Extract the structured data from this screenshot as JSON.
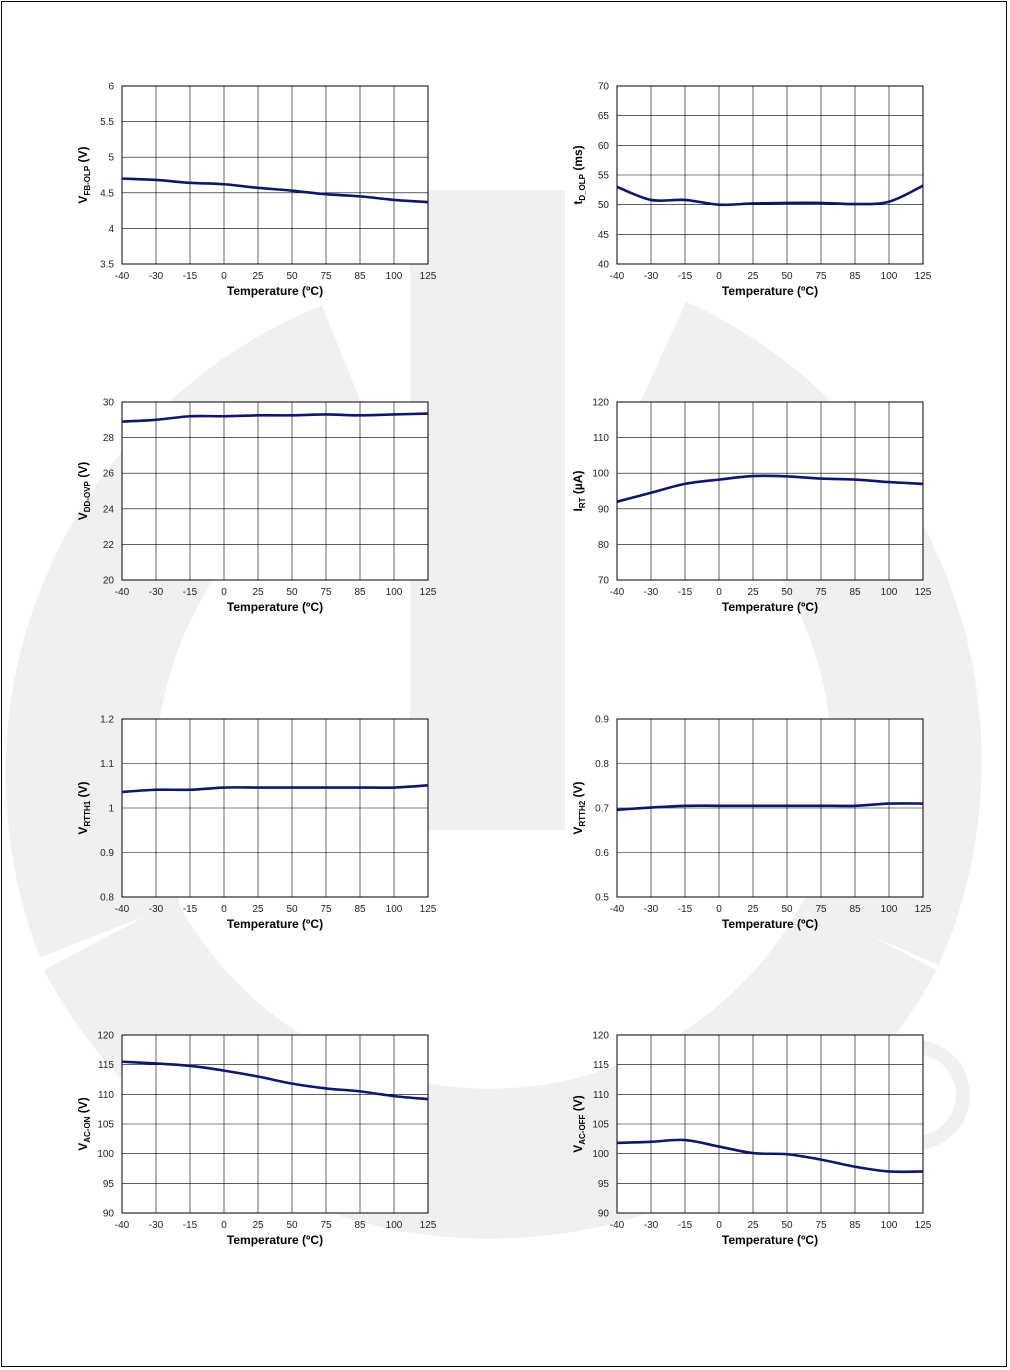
{
  "colors": {
    "line": "#0d1673",
    "grid": "#000000",
    "watermark": "#f0f0f0"
  },
  "chart_data": [
    {
      "type": "line",
      "x": [
        "-40",
        "-30",
        "-15",
        "0",
        "25",
        "50",
        "75",
        "85",
        "100",
        "125"
      ],
      "xlabel": "Temperature (ºC)",
      "ylabel": {
        "main": "V",
        "sub": "FB-OLP",
        "unit": " (V)"
      },
      "yticks": [
        "3.5",
        "4",
        "4.5",
        "5",
        "5.5",
        "6"
      ],
      "ylim": [
        3.5,
        6
      ],
      "series": [
        {
          "values": [
            4.7,
            4.68,
            4.64,
            4.62,
            4.57,
            4.53,
            4.48,
            4.45,
            4.4,
            4.37
          ]
        }
      ]
    },
    {
      "type": "line",
      "x": [
        "-40",
        "-30",
        "-15",
        "0",
        "25",
        "50",
        "75",
        "85",
        "100",
        "125"
      ],
      "xlabel": "Temperature (ºC)",
      "ylabel": {
        "main": "t",
        "sub": "D_OLP",
        "unit": " (ms)"
      },
      "yticks": [
        "40",
        "45",
        "50",
        "55",
        "60",
        "65",
        "70"
      ],
      "ylim": [
        40,
        70
      ],
      "series": [
        {
          "values": [
            53.0,
            50.8,
            50.8,
            50.0,
            50.2,
            50.3,
            50.3,
            50.1,
            50.5,
            53.2
          ]
        }
      ]
    },
    {
      "type": "line",
      "x": [
        "-40",
        "-30",
        "-15",
        "0",
        "25",
        "50",
        "75",
        "85",
        "100",
        "125"
      ],
      "xlabel": "Temperature (ºC)",
      "ylabel": {
        "main": "V",
        "sub": "DD-OVP",
        "unit": " (V)"
      },
      "yticks": [
        "20",
        "22",
        "24",
        "26",
        "28",
        "30"
      ],
      "ylim": [
        20,
        30
      ],
      "series": [
        {
          "values": [
            28.9,
            29.0,
            29.2,
            29.2,
            29.25,
            29.25,
            29.3,
            29.25,
            29.3,
            29.35
          ]
        }
      ]
    },
    {
      "type": "line",
      "x": [
        "-40",
        "-30",
        "-15",
        "0",
        "25",
        "50",
        "75",
        "85",
        "100",
        "125"
      ],
      "xlabel": "Temperature (ºC)",
      "ylabel": {
        "main": "I",
        "sub": "RT",
        "unit": " (µA)"
      },
      "yticks": [
        "70",
        "80",
        "90",
        "100",
        "110",
        "120"
      ],
      "ylim": [
        70,
        120
      ],
      "series": [
        {
          "values": [
            92.0,
            94.5,
            97.0,
            98.2,
            99.2,
            99.1,
            98.5,
            98.2,
            97.5,
            97.0
          ]
        }
      ]
    },
    {
      "type": "line",
      "x": [
        "-40",
        "-30",
        "-15",
        "0",
        "25",
        "50",
        "75",
        "85",
        "100",
        "125"
      ],
      "xlabel": "Temperature (ºC)",
      "ylabel": {
        "main": "V",
        "sub": "RTTH1",
        "unit": " (V)"
      },
      "yticks": [
        "0.8",
        "0.9",
        "1",
        "1.1",
        "1.2"
      ],
      "ylim": [
        0.8,
        1.2
      ],
      "series": [
        {
          "values": [
            1.036,
            1.041,
            1.041,
            1.046,
            1.046,
            1.046,
            1.046,
            1.046,
            1.046,
            1.051
          ]
        }
      ]
    },
    {
      "type": "line",
      "x": [
        "-40",
        "-30",
        "-15",
        "0",
        "25",
        "50",
        "75",
        "85",
        "100",
        "125"
      ],
      "xlabel": "Temperature (ºC)",
      "ylabel": {
        "main": "V",
        "sub": "RTTH2",
        "unit": " (V)"
      },
      "yticks": [
        "0.5",
        "0.6",
        "0.7",
        "0.8",
        "0.9"
      ],
      "ylim": [
        0.5,
        0.9
      ],
      "series": [
        {
          "values": [
            0.696,
            0.701,
            0.705,
            0.705,
            0.705,
            0.705,
            0.705,
            0.705,
            0.71,
            0.71
          ]
        }
      ]
    },
    {
      "type": "line",
      "x": [
        "-40",
        "-30",
        "-15",
        "0",
        "25",
        "50",
        "75",
        "85",
        "100",
        "125"
      ],
      "xlabel": "Temperature (ºC)",
      "ylabel": {
        "main": "V",
        "sub": "AC-ON",
        "unit": " (V)"
      },
      "yticks": [
        "90",
        "95",
        "100",
        "105",
        "110",
        "115",
        "120"
      ],
      "ylim": [
        90,
        120
      ],
      "series": [
        {
          "values": [
            115.5,
            115.2,
            114.8,
            114.0,
            113.0,
            111.8,
            111.0,
            110.5,
            109.7,
            109.2
          ]
        }
      ]
    },
    {
      "type": "line",
      "x": [
        "-40",
        "-30",
        "-15",
        "0",
        "25",
        "50",
        "75",
        "85",
        "100",
        "125"
      ],
      "xlabel": "Temperature (ºC)",
      "ylabel": {
        "main": "V",
        "sub": "AC-OFF",
        "unit": " (V)"
      },
      "yticks": [
        "90",
        "95",
        "100",
        "105",
        "110",
        "115",
        "120"
      ],
      "ylim": [
        90,
        120
      ],
      "series": [
        {
          "values": [
            101.8,
            102.0,
            102.3,
            101.2,
            100.1,
            99.9,
            99.0,
            97.8,
            97.0,
            97.0
          ]
        }
      ]
    }
  ]
}
